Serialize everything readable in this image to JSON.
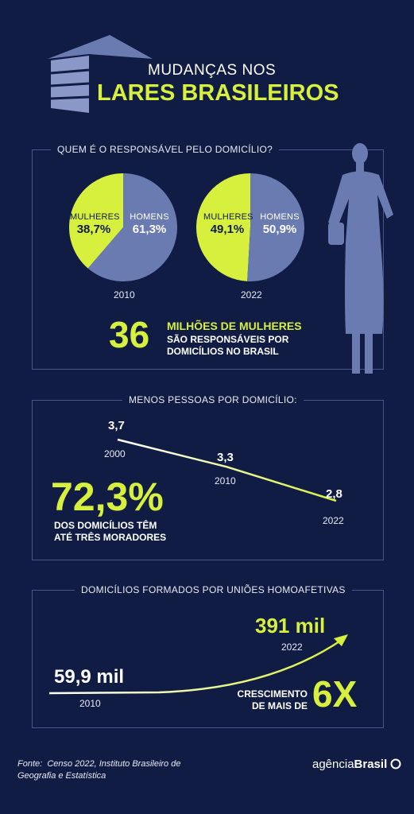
{
  "header": {
    "title_line1": "MUDANÇAS NOS",
    "title_line2": "LARES BRASILEIROS"
  },
  "colors": {
    "background": "#111c44",
    "accent": "#d7ef3d",
    "slate": "#6a7bb2",
    "border": "#4a5684"
  },
  "section1": {
    "title": "QUEM É O RESPONSÁVEL PELO DOMICÍLIO?",
    "highlight_number": "36",
    "highlight_text_line1": "MILHÕES DE MULHERES",
    "highlight_text_line2": "SÃO RESPONSÁVEIS POR",
    "highlight_text_line3": "DOMICÍLIOS NO BRASIL"
  },
  "section2": {
    "title": "MENOS PESSOAS POR DOMICÍLIO:",
    "highlight_number": "72,3%",
    "highlight_text_line1": "DOS DOMICÍLIOS TÊM",
    "highlight_text_line2": "ATÉ TRÊS MORADORES"
  },
  "section3": {
    "title": "DOMICÍLIOS FORMADOS POR UNIÕES HOMOAFETIVAS",
    "growth_text_line1": "CRESCIMENTO",
    "growth_text_line2": "DE MAIS DE",
    "growth_value": "6X"
  },
  "chart_data": [
    {
      "type": "pie",
      "year": "2010",
      "slices": [
        {
          "label": "MULHERES",
          "value": 38.7,
          "display": "38,7%",
          "color": "#d7ef3d"
        },
        {
          "label": "HOMENS",
          "value": 61.3,
          "display": "61,3%",
          "color": "#6a7bb2"
        }
      ]
    },
    {
      "type": "pie",
      "year": "2022",
      "slices": [
        {
          "label": "MULHERES",
          "value": 49.1,
          "display": "49,1%",
          "color": "#d7ef3d"
        },
        {
          "label": "HOMENS",
          "value": 50.9,
          "display": "50,9%",
          "color": "#6a7bb2"
        }
      ]
    },
    {
      "type": "line",
      "x": [
        "2000",
        "2010",
        "2022"
      ],
      "values": [
        3.7,
        3.3,
        2.8
      ],
      "labels": [
        "3,7",
        "3,3",
        "2,8"
      ]
    },
    {
      "type": "line",
      "x": [
        "2010",
        "2022"
      ],
      "values": [
        59.9,
        391
      ],
      "labels": [
        "59,9 mil",
        "391 mil"
      ]
    }
  ],
  "footer": {
    "source_label": "Fonte:",
    "source_text_line1": "Censo 2022, Instituto Brasileiro de",
    "source_text_line2": "Geografia e Estatística",
    "brand_prefix": "agência",
    "brand_suffix": "Brasil"
  }
}
